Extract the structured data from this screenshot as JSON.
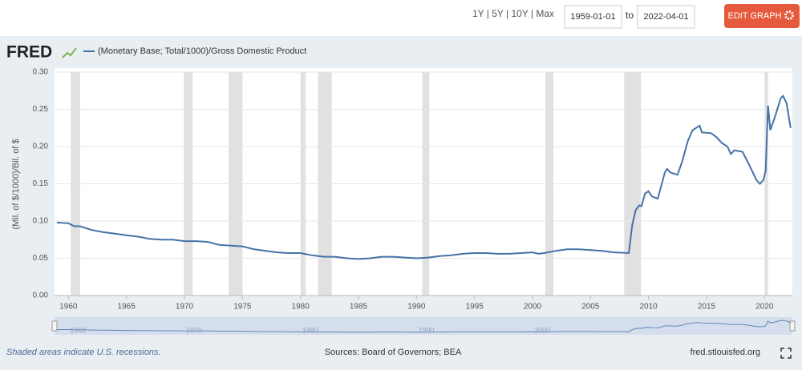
{
  "toolbar": {
    "range_selector": "1Y | 5Y | 10Y | Max",
    "start_date": "1959-01-01",
    "to": "to",
    "end_date": "2022-04-01",
    "edit_button": "EDIT GRAPH"
  },
  "logo": "FRED",
  "chart_data": {
    "type": "line",
    "y_label": "(Mil. of $/1000)/Bil. of $",
    "x": [
      1959,
      1960,
      1960.5,
      1961,
      1962,
      1963,
      1964,
      1965,
      1966,
      1967,
      1968,
      1969,
      1970,
      1971,
      1972,
      1973,
      1974,
      1975,
      1976,
      1977,
      1978,
      1979,
      1980,
      1981,
      1982,
      1983,
      1984,
      1985,
      1986,
      1987,
      1988,
      1989,
      1990,
      1991,
      1992,
      1993,
      1994,
      1995,
      1996,
      1997,
      1998,
      1999,
      2000,
      2000.5,
      2001,
      2002,
      2003,
      2004,
      2005,
      2006,
      2007,
      2008.3,
      2008.6,
      2008.9,
      2009.2,
      2009.4,
      2009.7,
      2010,
      2010.3,
      2010.8,
      2011.4,
      2011.6,
      2011.9,
      2012.5,
      2012.9,
      2013.4,
      2013.8,
      2014.4,
      2014.6,
      2015.4,
      2015.9,
      2016.3,
      2016.8,
      2017.1,
      2017.4,
      2018.1,
      2018.6,
      2019.3,
      2019.6,
      2019.9,
      2020.1,
      2020.3,
      2020.5,
      2020.9,
      2021.4,
      2021.6,
      2021.9,
      2022.25
    ],
    "series": [
      {
        "name": "(Monetary Base; Total/1000)/Gross Domestic Product",
        "color": "#4572a7",
        "values": [
          0.098,
          0.097,
          0.093,
          0.093,
          0.088,
          0.085,
          0.083,
          0.081,
          0.079,
          0.076,
          0.075,
          0.075,
          0.073,
          0.073,
          0.072,
          0.068,
          0.067,
          0.066,
          0.062,
          0.06,
          0.058,
          0.057,
          0.057,
          0.054,
          0.052,
          0.052,
          0.05,
          0.049,
          0.05,
          0.052,
          0.052,
          0.051,
          0.05,
          0.051,
          0.053,
          0.054,
          0.056,
          0.057,
          0.057,
          0.056,
          0.056,
          0.057,
          0.058,
          0.056,
          0.057,
          0.06,
          0.062,
          0.062,
          0.061,
          0.06,
          0.058,
          0.057,
          0.095,
          0.115,
          0.121,
          0.12,
          0.137,
          0.14,
          0.133,
          0.13,
          0.165,
          0.17,
          0.165,
          0.162,
          0.18,
          0.208,
          0.222,
          0.228,
          0.219,
          0.218,
          0.212,
          0.205,
          0.2,
          0.19,
          0.195,
          0.193,
          0.178,
          0.155,
          0.15,
          0.155,
          0.168,
          0.255,
          0.222,
          0.24,
          0.265,
          0.268,
          0.258,
          0.225
        ]
      }
    ],
    "xlim": [
      1958.8,
      2022.4
    ],
    "ylim": [
      0,
      0.3
    ],
    "xticks": [
      1960,
      1965,
      1970,
      1975,
      1980,
      1985,
      1990,
      1995,
      2000,
      2005,
      2010,
      2015,
      2020
    ],
    "yticks": [
      {
        "value": 0,
        "label": "0.00"
      },
      0.05,
      {
        "value": 0.1,
        "label": "0.10"
      },
      0.15,
      {
        "value": 0.2,
        "label": "0.20"
      },
      0.25,
      {
        "value": 0.3,
        "label": "0.30"
      }
    ],
    "grid": true,
    "recessions": [
      [
        1960.2,
        1961.0
      ],
      [
        1969.95,
        1970.7
      ],
      [
        1973.8,
        1975.0
      ],
      [
        1980.0,
        1980.45
      ],
      [
        1981.5,
        1982.7
      ],
      [
        1990.5,
        1991.1
      ],
      [
        2001.1,
        2001.8
      ],
      [
        2007.9,
        2009.35
      ],
      [
        2020.0,
        2020.3
      ]
    ],
    "recession_color": "#e1e1e1",
    "navigator_ticks": [
      1960,
      1970,
      1980,
      1990,
      2000
    ]
  },
  "footer": {
    "note": "Shaded areas indicate U.S. recessions.",
    "sources": "Sources: Board of Governors; BEA",
    "site": "fred.stlouisfed.org"
  }
}
